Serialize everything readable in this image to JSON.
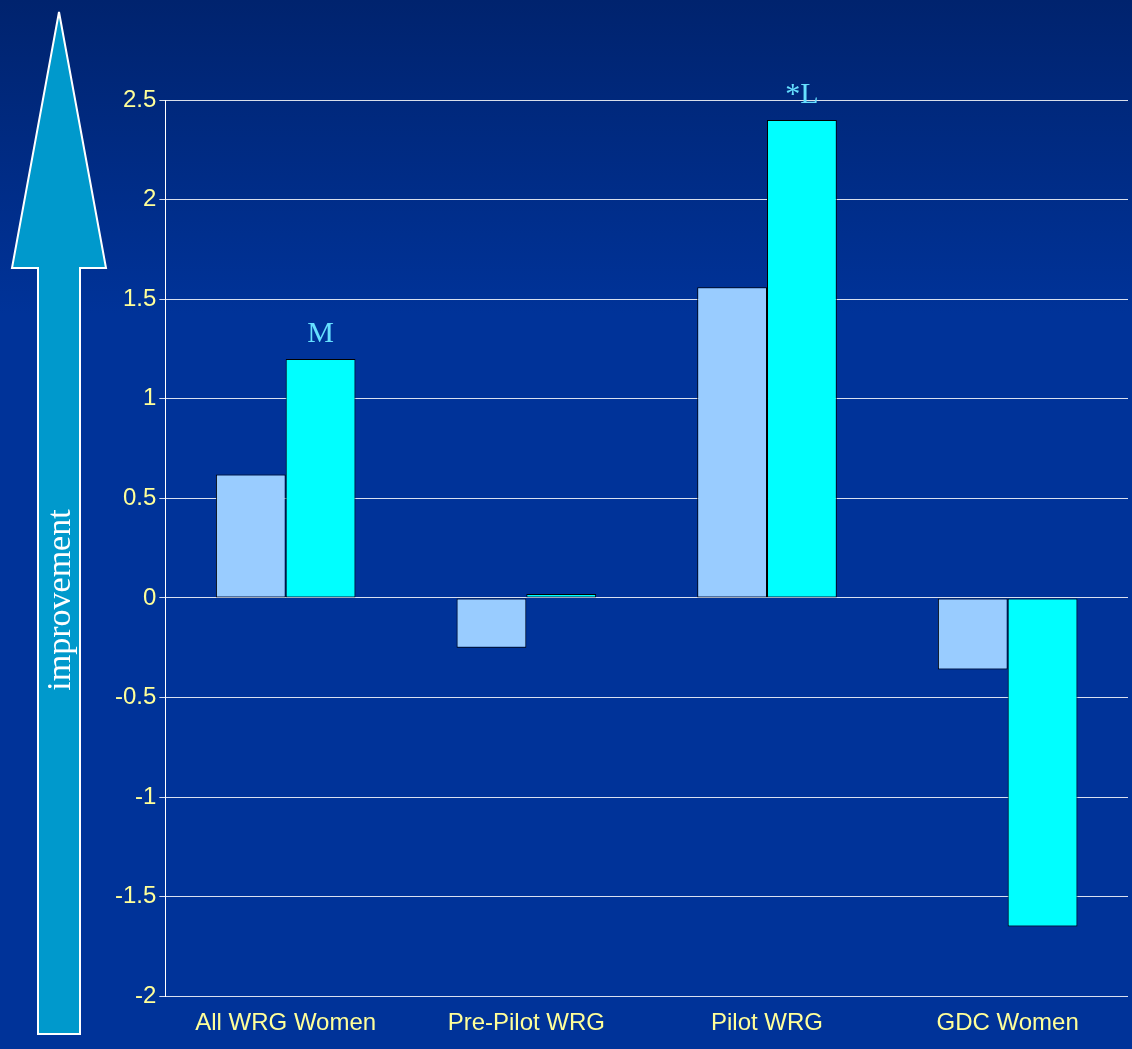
{
  "chart_data": {
    "type": "bar",
    "categories": [
      "All WRG Women",
      "Pre-Pilot WRG",
      "Pilot WRG",
      "GDC Women"
    ],
    "series": [
      {
        "color": "#99ccff",
        "values": [
          0.62,
          -0.25,
          1.56,
          -0.36
        ]
      },
      {
        "color": "#00ffff",
        "values": [
          1.2,
          0.02,
          2.4,
          -1.65
        ]
      }
    ],
    "ylim": [
      -2,
      2.5
    ],
    "yticks": [
      -2,
      -1.5,
      -1,
      -0.5,
      0,
      0.5,
      1,
      1.5,
      2,
      2.5
    ],
    "grid": "y",
    "legend": false,
    "annotations": [
      {
        "text": "M",
        "x": "All WRG Women",
        "y": 1.2
      },
      {
        "text": "*L",
        "x": "Pilot WRG",
        "y": 2.4
      },
      "improvement"
    ]
  }
}
